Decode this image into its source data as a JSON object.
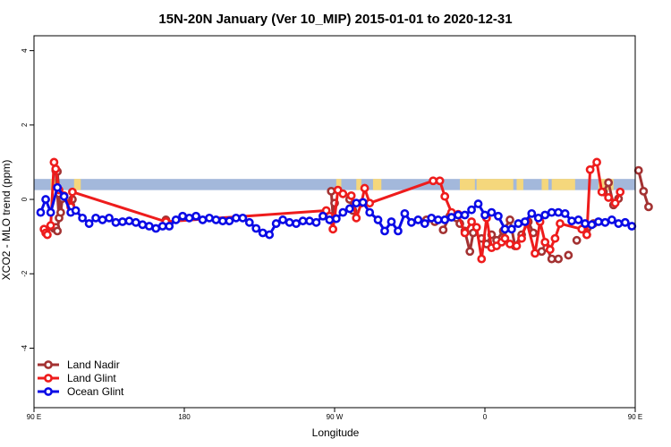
{
  "chart_data": {
    "type": "line",
    "title": "15N-20N January (Ver 10_MIP)   2015-01-01 to 2020-12-31",
    "xlabel": "Longitude",
    "ylabel": "XCO2 - MLO trend (ppm)",
    "xlim": [
      90,
      450
    ],
    "ylim": [
      -5.6,
      4.4
    ],
    "x_ticks": [
      {
        "value": 90,
        "label": "90 E"
      },
      {
        "value": 180,
        "label": "180"
      },
      {
        "value": 270,
        "label": "90 W"
      },
      {
        "value": 360,
        "label": "0"
      },
      {
        "value": 450,
        "label": "90 E"
      },
      {
        "value": 540,
        "label": "180"
      }
    ],
    "y_ticks": [
      {
        "value": 4,
        "label": "4"
      },
      {
        "value": 2,
        "label": "2"
      },
      {
        "value": 0,
        "label": "0"
      },
      {
        "value": -2,
        "label": "-2"
      },
      {
        "value": -4,
        "label": "-4"
      }
    ],
    "legend": {
      "position": "bottom-left"
    },
    "land_mask": {
      "ymin": 0.25,
      "ymax": 0.55,
      "ocean_color": "#a3b8db",
      "land_color": "#f5d77c",
      "land_ranges": [
        [
          100,
          103
        ],
        [
          114,
          118
        ],
        [
          271,
          274
        ],
        [
          283,
          286
        ],
        [
          293,
          298
        ],
        [
          345,
          354
        ],
        [
          355,
          377
        ],
        [
          379,
          383
        ],
        [
          394,
          398
        ],
        [
          400,
          414
        ],
        [
          428,
          437
        ],
        [
          450,
          454
        ],
        [
          464,
          468
        ]
      ]
    },
    "series": [
      {
        "name": "Land Nadir",
        "color": "#a33232",
        "points": [
          [
            102,
            -0.78
          ],
          [
            103,
            -0.75
          ],
          [
            104,
            -0.85
          ],
          [
            105,
            -0.5
          ],
          [
            103,
            0.78
          ],
          [
            104,
            0.75
          ],
          [
            105,
            0.15
          ],
          [
            106,
            -0.35
          ],
          [
            107,
            0.02
          ],
          [
            112,
            -0.15
          ],
          [
            113,
            0.0
          ],
          [
            169,
            -0.55
          ],
          [
            268,
            0.22
          ],
          [
            269,
            -0.45
          ],
          [
            270,
            -0.1
          ],
          [
            279,
            0.0
          ],
          [
            281,
            -0.3
          ],
          [
            325,
            -0.55
          ],
          [
            330,
            -0.6
          ],
          [
            335,
            -0.82
          ],
          [
            339,
            -0.45
          ],
          [
            343,
            -0.5
          ],
          [
            345,
            -0.65
          ],
          [
            348,
            -0.85
          ],
          [
            351,
            -1.4
          ],
          [
            353,
            -0.9
          ],
          [
            358,
            -1.05
          ],
          [
            361,
            -1.2
          ],
          [
            364,
            -0.95
          ],
          [
            367,
            -1.1
          ],
          [
            371,
            -0.85
          ],
          [
            375,
            -0.55
          ],
          [
            378,
            -1.25
          ],
          [
            382,
            -0.95
          ],
          [
            386,
            -0.6
          ],
          [
            389,
            -0.9
          ],
          [
            394,
            -1.4
          ],
          [
            397,
            -1.3
          ],
          [
            400,
            -1.6
          ],
          [
            404,
            -1.6
          ],
          [
            410,
            -1.5
          ],
          [
            415,
            -1.1
          ],
          [
            421,
            -0.95
          ],
          [
            425,
            -0.65
          ],
          [
            431,
            0.2
          ],
          [
            434,
            0.45
          ],
          [
            437,
            -0.15
          ],
          [
            440,
            0.02
          ],
          [
            452,
            0.78
          ],
          [
            455,
            0.22
          ],
          [
            458,
            -0.2
          ]
        ],
        "markers_only": true
      },
      {
        "name": "Land Glint",
        "color": "#ee1c1c",
        "points": [
          [
            96,
            -0.8
          ],
          [
            97,
            -0.9
          ],
          [
            98,
            -0.95
          ],
          [
            100,
            -0.7
          ],
          [
            102,
            1.0
          ],
          [
            103,
            0.82
          ],
          [
            105,
            0.25
          ],
          [
            108,
            0.1
          ],
          [
            112,
            -0.2
          ],
          [
            113,
            0.2
          ],
          [
            169,
            -0.6
          ],
          [
            265,
            -0.3
          ],
          [
            267,
            -0.45
          ],
          [
            269,
            -0.8
          ],
          [
            270,
            -0.5
          ],
          [
            272,
            0.25
          ],
          [
            275,
            0.15
          ],
          [
            280,
            0.1
          ],
          [
            283,
            -0.5
          ],
          [
            286,
            -0.1
          ],
          [
            288,
            0.3
          ],
          [
            291,
            -0.1
          ],
          [
            329,
            0.5
          ],
          [
            333,
            0.5
          ],
          [
            336,
            0.08
          ],
          [
            340,
            -0.35
          ],
          [
            344,
            -0.4
          ],
          [
            348,
            -0.9
          ],
          [
            352,
            -0.6
          ],
          [
            355,
            -0.75
          ],
          [
            358,
            -1.6
          ],
          [
            361,
            -0.5
          ],
          [
            364,
            -1.3
          ],
          [
            367,
            -1.25
          ],
          [
            370,
            -1.15
          ],
          [
            372,
            -1.05
          ],
          [
            375,
            -1.2
          ],
          [
            379,
            -1.25
          ],
          [
            382,
            -1.05
          ],
          [
            385,
            -0.6
          ],
          [
            390,
            -1.45
          ],
          [
            393,
            -0.6
          ],
          [
            396,
            -1.15
          ],
          [
            399,
            -1.35
          ],
          [
            402,
            -1.05
          ],
          [
            405,
            -0.65
          ],
          [
            418,
            -0.8
          ],
          [
            421,
            -0.95
          ],
          [
            423,
            0.8
          ],
          [
            427,
            1.0
          ],
          [
            430,
            0.2
          ],
          [
            434,
            0.05
          ],
          [
            438,
            -0.1
          ],
          [
            441,
            0.2
          ]
        ]
      },
      {
        "name": "Ocean Glint",
        "color": "#0a0ae6",
        "points": [
          [
            94,
            -0.35
          ],
          [
            97,
            0.0
          ],
          [
            100,
            -0.35
          ],
          [
            104,
            0.32
          ],
          [
            108,
            0.08
          ],
          [
            112,
            -0.35
          ],
          [
            115,
            -0.3
          ],
          [
            119,
            -0.5
          ],
          [
            123,
            -0.65
          ],
          [
            127,
            -0.5
          ],
          [
            131,
            -0.55
          ],
          [
            135,
            -0.5
          ],
          [
            139,
            -0.62
          ],
          [
            143,
            -0.6
          ],
          [
            147,
            -0.58
          ],
          [
            151,
            -0.62
          ],
          [
            155,
            -0.68
          ],
          [
            159,
            -0.72
          ],
          [
            163,
            -0.78
          ],
          [
            167,
            -0.72
          ],
          [
            171,
            -0.72
          ],
          [
            175,
            -0.55
          ],
          [
            179,
            -0.45
          ],
          [
            183,
            -0.5
          ],
          [
            187,
            -0.45
          ],
          [
            191,
            -0.55
          ],
          [
            195,
            -0.5
          ],
          [
            199,
            -0.55
          ],
          [
            203,
            -0.58
          ],
          [
            207,
            -0.58
          ],
          [
            211,
            -0.5
          ],
          [
            215,
            -0.5
          ],
          [
            219,
            -0.62
          ],
          [
            223,
            -0.78
          ],
          [
            227,
            -0.9
          ],
          [
            231,
            -0.95
          ],
          [
            235,
            -0.65
          ],
          [
            239,
            -0.55
          ],
          [
            243,
            -0.62
          ],
          [
            247,
            -0.65
          ],
          [
            251,
            -0.58
          ],
          [
            255,
            -0.58
          ],
          [
            259,
            -0.62
          ],
          [
            263,
            -0.45
          ],
          [
            267,
            -0.55
          ],
          [
            271,
            -0.52
          ],
          [
            275,
            -0.35
          ],
          [
            279,
            -0.25
          ],
          [
            283,
            -0.1
          ],
          [
            287,
            -0.08
          ],
          [
            291,
            -0.35
          ],
          [
            296,
            -0.55
          ],
          [
            300,
            -0.85
          ],
          [
            304,
            -0.6
          ],
          [
            308,
            -0.85
          ],
          [
            312,
            -0.38
          ],
          [
            316,
            -0.62
          ],
          [
            320,
            -0.55
          ],
          [
            324,
            -0.65
          ],
          [
            328,
            -0.5
          ],
          [
            332,
            -0.55
          ],
          [
            336,
            -0.55
          ],
          [
            340,
            -0.48
          ],
          [
            344,
            -0.42
          ],
          [
            348,
            -0.42
          ],
          [
            352,
            -0.28
          ],
          [
            356,
            -0.12
          ],
          [
            360,
            -0.42
          ],
          [
            364,
            -0.35
          ],
          [
            368,
            -0.45
          ],
          [
            372,
            -0.8
          ],
          [
            376,
            -0.8
          ],
          [
            380,
            -0.65
          ],
          [
            384,
            -0.6
          ],
          [
            388,
            -0.38
          ],
          [
            392,
            -0.5
          ],
          [
            396,
            -0.42
          ],
          [
            400,
            -0.35
          ],
          [
            404,
            -0.35
          ],
          [
            408,
            -0.38
          ],
          [
            412,
            -0.58
          ],
          [
            416,
            -0.55
          ],
          [
            420,
            -0.65
          ],
          [
            424,
            -0.68
          ],
          [
            428,
            -0.6
          ],
          [
            432,
            -0.62
          ],
          [
            436,
            -0.55
          ],
          [
            440,
            -0.65
          ],
          [
            444,
            -0.62
          ],
          [
            448,
            -0.72
          ]
        ]
      }
    ]
  }
}
